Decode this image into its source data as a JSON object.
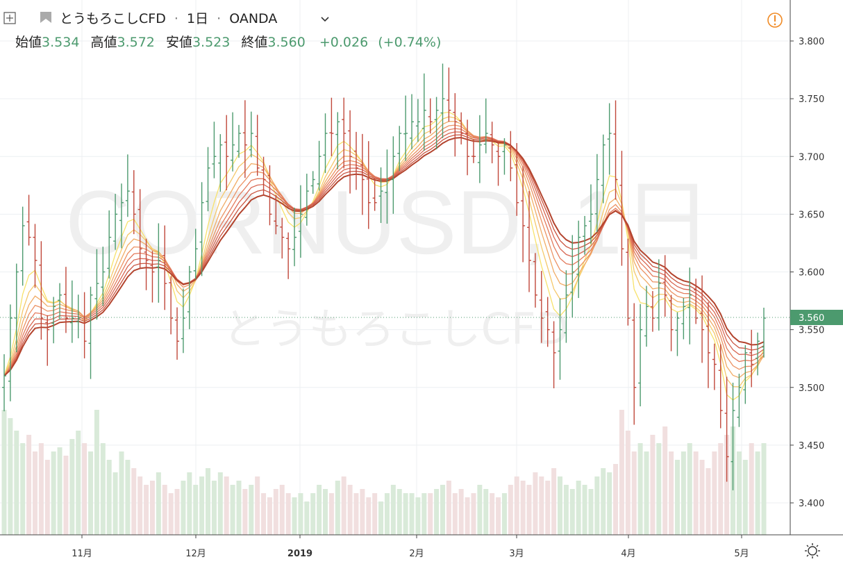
{
  "header": {
    "symbol_name": "とうもろこしCFD",
    "interval": "1日",
    "exchange": "OANDA",
    "separator": "·",
    "ohlc": [
      {
        "label": "始値",
        "value": "3.534"
      },
      {
        "label": "高値",
        "value": "3.572"
      },
      {
        "label": "安値",
        "value": "3.523"
      },
      {
        "label": "終値",
        "value": "3.560"
      }
    ],
    "change": "+0.026",
    "change_pct": "(+0.74%)"
  },
  "watermark": {
    "ticker": "CORNUSD, 1日",
    "name": "とうもろこしCFD"
  },
  "colors": {
    "up": "#4c9a6e",
    "down": "#c0473a",
    "up_volume": "#d9ead9",
    "down_volume": "#f1dfdf",
    "grid": "#eceff2",
    "price_tag": "#4c9a6e"
  },
  "chart_data": {
    "type": "ohlc",
    "title": "とうもろこしCFD · 1日 · OANDA",
    "x_tick_labels": [
      "11月",
      "12月",
      "2019",
      "2月",
      "3月",
      "4月",
      "5月"
    ],
    "y_tick_labels": [
      "3.800",
      "3.750",
      "3.700",
      "3.650",
      "3.600",
      "3.550",
      "3.500",
      "3.450",
      "3.400"
    ],
    "ylim": [
      3.38,
      3.82
    ],
    "last_price": "3.560",
    "grid": true,
    "overlay": "ribbon of 8 moving averages (yellow to dark red)",
    "series": [
      {
        "name": "price",
        "close": [
          3.51,
          3.56,
          3.6,
          3.64,
          3.63,
          3.61,
          3.56,
          3.55,
          3.57,
          3.58,
          3.56,
          3.56,
          3.56,
          3.54,
          3.58,
          3.59,
          3.6,
          3.63,
          3.65,
          3.66,
          3.67,
          3.65,
          3.62,
          3.61,
          3.6,
          3.61,
          3.59,
          3.56,
          3.54,
          3.56,
          3.6,
          3.62,
          3.66,
          3.69,
          3.7,
          3.71,
          3.7,
          3.71,
          3.72,
          3.71,
          3.72,
          3.69,
          3.68,
          3.65,
          3.64,
          3.63,
          3.62,
          3.63,
          3.65,
          3.67,
          3.68,
          3.7,
          3.72,
          3.72,
          3.73,
          3.72,
          3.7,
          3.69,
          3.68,
          3.66,
          3.66,
          3.67,
          3.68,
          3.7,
          3.72,
          3.72,
          3.73,
          3.73,
          3.74,
          3.73,
          3.74,
          3.75,
          3.74,
          3.73,
          3.72,
          3.7,
          3.7,
          3.71,
          3.72,
          3.71,
          3.7,
          3.71,
          3.69,
          3.66,
          3.64,
          3.61,
          3.58,
          3.56,
          3.55,
          3.53,
          3.55,
          3.58,
          3.6,
          3.63,
          3.64,
          3.65,
          3.68,
          3.71,
          3.72,
          3.68,
          3.62,
          3.56,
          3.5,
          3.55,
          3.57,
          3.56,
          3.59,
          3.58,
          3.55,
          3.56,
          3.57,
          3.58,
          3.56,
          3.55,
          3.53,
          3.52,
          3.48,
          3.44,
          3.48,
          3.5,
          3.53,
          3.52,
          3.54,
          3.56
        ]
      },
      {
        "name": "volume",
        "relative": [
          0.3,
          0.28,
          0.25,
          0.22,
          0.24,
          0.2,
          0.22,
          0.18,
          0.2,
          0.21,
          0.19,
          0.23,
          0.25,
          0.22,
          0.2,
          0.3,
          0.22,
          0.18,
          0.15,
          0.2,
          0.18,
          0.16,
          0.14,
          0.12,
          0.13,
          0.15,
          0.12,
          0.1,
          0.11,
          0.13,
          0.15,
          0.12,
          0.14,
          0.16,
          0.13,
          0.15,
          0.14,
          0.12,
          0.13,
          0.11,
          0.12,
          0.14,
          0.1,
          0.09,
          0.11,
          0.12,
          0.1,
          0.09,
          0.1,
          0.08,
          0.1,
          0.12,
          0.11,
          0.1,
          0.13,
          0.14,
          0.12,
          0.1,
          0.11,
          0.09,
          0.1,
          0.08,
          0.1,
          0.12,
          0.11,
          0.1,
          0.1,
          0.09,
          0.1,
          0.1,
          0.11,
          0.12,
          0.13,
          0.1,
          0.11,
          0.09,
          0.1,
          0.12,
          0.11,
          0.1,
          0.09,
          0.1,
          0.12,
          0.14,
          0.13,
          0.12,
          0.15,
          0.14,
          0.13,
          0.16,
          0.14,
          0.12,
          0.11,
          0.13,
          0.12,
          0.11,
          0.14,
          0.16,
          0.15,
          0.17,
          0.3,
          0.25,
          0.2,
          0.22,
          0.2,
          0.24,
          0.22,
          0.26,
          0.2,
          0.18,
          0.2,
          0.22,
          0.2,
          0.18,
          0.16,
          0.2,
          0.22,
          0.24,
          0.26,
          0.2,
          0.18,
          0.22,
          0.2,
          0.22
        ]
      }
    ]
  }
}
